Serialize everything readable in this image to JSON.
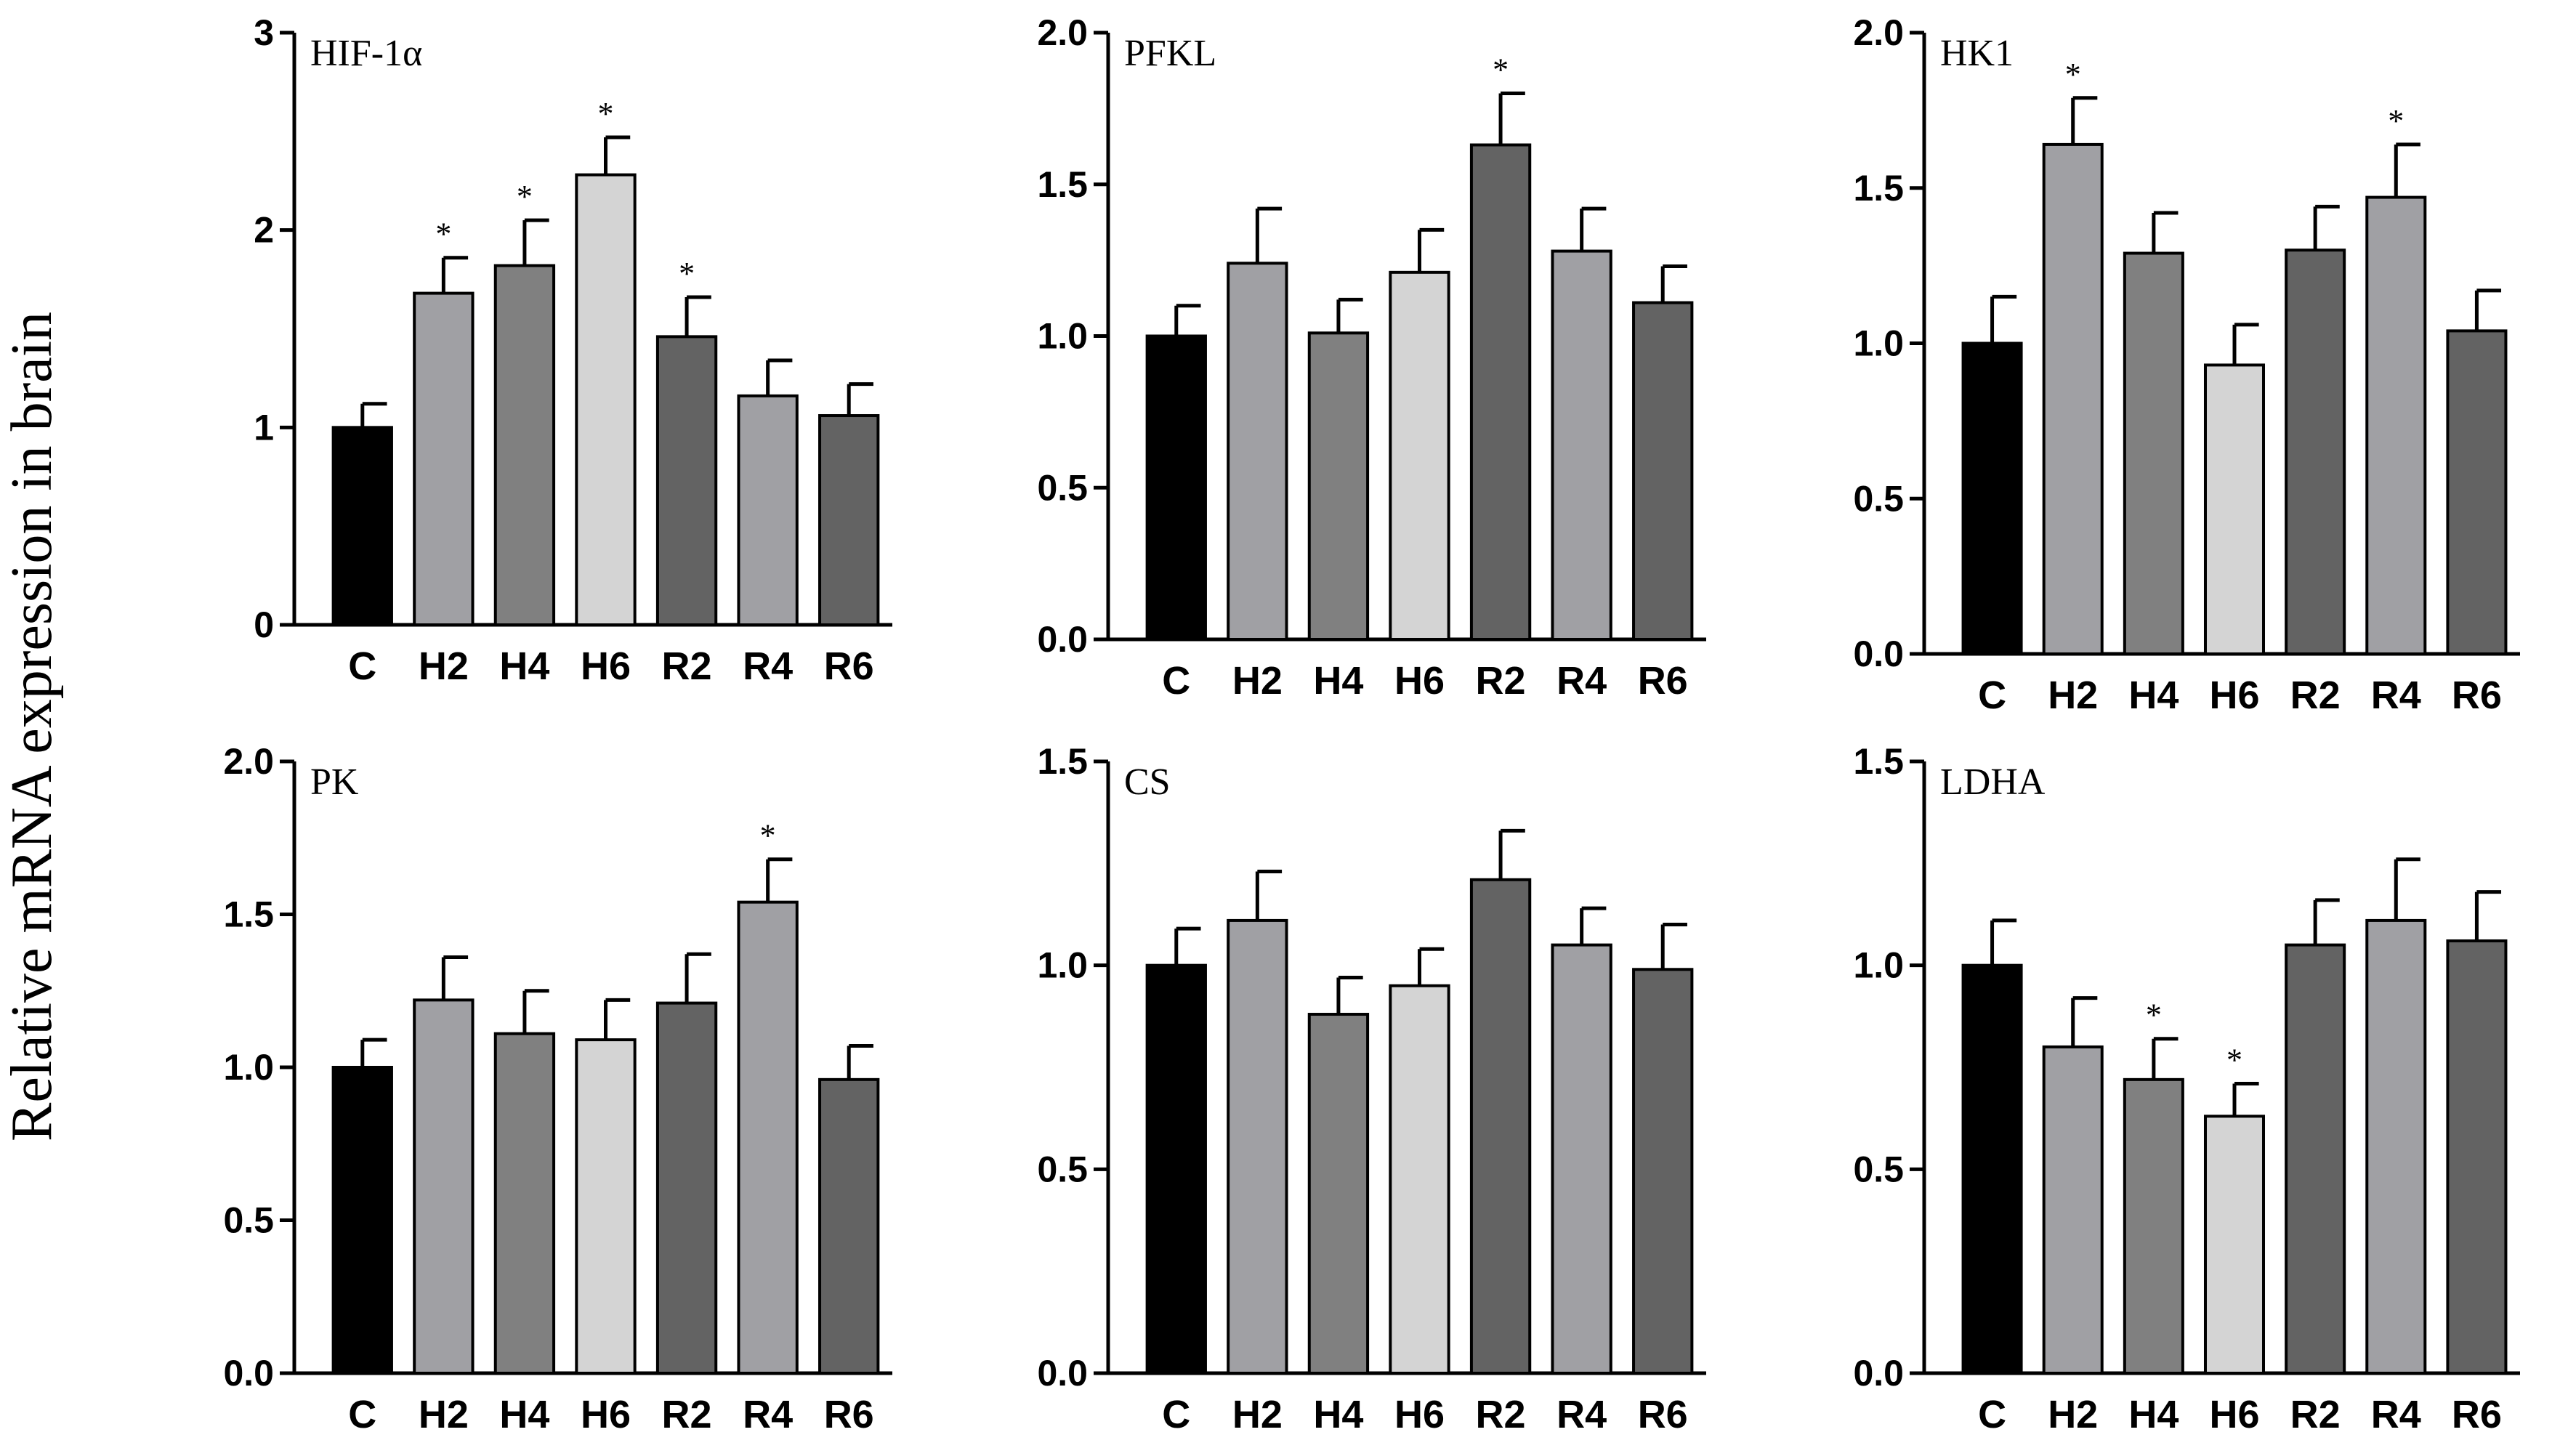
{
  "figure": {
    "ylabel": "Relative mRNA expression in brain"
  },
  "palette": [
    "#000000",
    "#a0a0a4",
    "#808080",
    "#d4d4d4",
    "#636363",
    "#a0a0a4",
    "#636363"
  ],
  "chart_data": [
    {
      "type": "bar",
      "title": "HIF-1α",
      "categories": [
        "C",
        "H2",
        "H4",
        "H6",
        "R2",
        "R4",
        "R6"
      ],
      "values": [
        1.0,
        1.68,
        1.82,
        2.28,
        1.46,
        1.16,
        1.06
      ],
      "errors": [
        0.12,
        0.18,
        0.23,
        0.19,
        0.2,
        0.18,
        0.16
      ],
      "significant": [
        false,
        true,
        true,
        true,
        true,
        false,
        false
      ],
      "ylim": [
        0,
        3
      ],
      "yticks": [
        "0",
        "1",
        "2",
        "3"
      ],
      "xlabel": "",
      "ylabel": ""
    },
    {
      "type": "bar",
      "title": "PFKL",
      "categories": [
        "C",
        "H2",
        "H4",
        "H6",
        "R2",
        "R4",
        "R6"
      ],
      "values": [
        1.0,
        1.24,
        1.01,
        1.21,
        1.63,
        1.28,
        1.11
      ],
      "errors": [
        0.1,
        0.18,
        0.11,
        0.14,
        0.17,
        0.14,
        0.12
      ],
      "significant": [
        false,
        false,
        false,
        false,
        true,
        false,
        false
      ],
      "ylim": [
        0,
        2
      ],
      "yticks": [
        "0.0",
        "0.5",
        "1.0",
        "1.5",
        "2.0"
      ],
      "xlabel": "",
      "ylabel": ""
    },
    {
      "type": "bar",
      "title": "HK1",
      "categories": [
        "C",
        "H2",
        "H4",
        "H6",
        "R2",
        "R4",
        "R6"
      ],
      "values": [
        1.0,
        1.64,
        1.29,
        0.93,
        1.3,
        1.47,
        1.04
      ],
      "errors": [
        0.15,
        0.15,
        0.13,
        0.13,
        0.14,
        0.17,
        0.13
      ],
      "significant": [
        false,
        true,
        false,
        false,
        false,
        true,
        false
      ],
      "ylim": [
        0,
        2
      ],
      "yticks": [
        "0.0",
        "0.5",
        "1.0",
        "1.5",
        "2.0"
      ],
      "xlabel": "",
      "ylabel": ""
    },
    {
      "type": "bar",
      "title": "PK",
      "categories": [
        "C",
        "H2",
        "H4",
        "H6",
        "R2",
        "R4",
        "R6"
      ],
      "values": [
        1.0,
        1.22,
        1.11,
        1.09,
        1.21,
        1.54,
        0.96
      ],
      "errors": [
        0.09,
        0.14,
        0.14,
        0.13,
        0.16,
        0.14,
        0.11
      ],
      "significant": [
        false,
        false,
        false,
        false,
        false,
        true,
        false
      ],
      "ylim": [
        0,
        2
      ],
      "yticks": [
        "0.0",
        "0.5",
        "1.0",
        "1.5",
        "2.0"
      ],
      "xlabel": "",
      "ylabel": ""
    },
    {
      "type": "bar",
      "title": "CS",
      "categories": [
        "C",
        "H2",
        "H4",
        "H6",
        "R2",
        "R4",
        "R6"
      ],
      "values": [
        1.0,
        1.11,
        0.88,
        0.95,
        1.21,
        1.05,
        0.99
      ],
      "errors": [
        0.09,
        0.12,
        0.09,
        0.09,
        0.12,
        0.09,
        0.11
      ],
      "significant": [
        false,
        false,
        false,
        false,
        false,
        false,
        false
      ],
      "ylim": [
        0,
        1.5
      ],
      "yticks": [
        "0.0",
        "0.5",
        "1.0",
        "1.5"
      ],
      "xlabel": "",
      "ylabel": ""
    },
    {
      "type": "bar",
      "title": "LDHA",
      "categories": [
        "C",
        "H2",
        "H4",
        "H6",
        "R2",
        "R4",
        "R6"
      ],
      "values": [
        1.0,
        0.8,
        0.72,
        0.63,
        1.05,
        1.11,
        1.06
      ],
      "errors": [
        0.11,
        0.12,
        0.1,
        0.08,
        0.11,
        0.15,
        0.12
      ],
      "significant": [
        false,
        false,
        true,
        true,
        false,
        false,
        false
      ],
      "ylim": [
        0,
        1.5
      ],
      "yticks": [
        "0.0",
        "0.5",
        "1.0",
        "1.5"
      ],
      "xlabel": "",
      "ylabel": ""
    }
  ],
  "star_symbol": "*"
}
